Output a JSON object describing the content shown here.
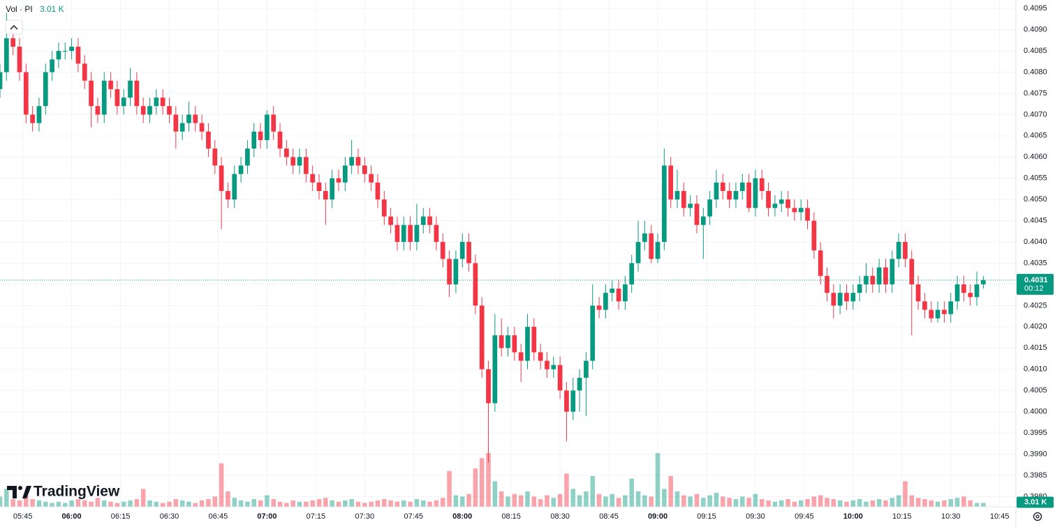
{
  "chart_data": {
    "type": "candlestick",
    "volume_legend": "Vol · PI",
    "volume_label": "3.01 K",
    "countdown": "00:12",
    "last_price": 0.4031,
    "up_color": "#089981",
    "down_color": "#f23645",
    "grid": true,
    "xlim": [
      "05:38",
      "10:50"
    ],
    "xticks": [
      "05:45",
      "06:00",
      "06:15",
      "06:30",
      "06:45",
      "07:00",
      "07:15",
      "07:30",
      "07:45",
      "08:00",
      "08:15",
      "08:30",
      "08:45",
      "09:00",
      "09:15",
      "09:30",
      "09:45",
      "10:00",
      "10:15",
      "10:30",
      "10:45"
    ],
    "ylim": [
      0.39776,
      0.4097
    ],
    "yticks": [
      {
        "value": 0.398,
        "label": "0.3980"
      },
      0.3985,
      {
        "value": 0.399,
        "label": "0.3990"
      },
      0.3995,
      {
        "value": 0.4,
        "label": "0.4000"
      },
      0.4005,
      {
        "value": 0.401,
        "label": "0.4010"
      },
      0.4015,
      {
        "value": 0.402,
        "label": "0.4020"
      },
      0.4025,
      {
        "value": 0.403,
        "label": "0.4030"
      },
      0.4035,
      {
        "value": 0.404,
        "label": "0.4040"
      },
      0.4045,
      {
        "value": 0.405,
        "label": "0.4050"
      },
      0.4055,
      {
        "value": 0.406,
        "label": "0.4060"
      },
      0.4065,
      {
        "value": 0.407,
        "label": "0.4070"
      },
      0.4075,
      {
        "value": 0.408,
        "label": "0.4080"
      },
      0.4085,
      {
        "value": 0.409,
        "label": "0.4090"
      },
      0.4095
    ],
    "volume_ylim": [
      0,
      60
    ],
    "x": [
      "05:38",
      "05:40",
      "05:42",
      "05:44",
      "05:46",
      "05:48",
      "05:50",
      "05:52",
      "05:54",
      "05:56",
      "05:58",
      "06:00",
      "06:02",
      "06:04",
      "06:06",
      "06:08",
      "06:10",
      "06:12",
      "06:14",
      "06:16",
      "06:18",
      "06:20",
      "06:22",
      "06:24",
      "06:26",
      "06:28",
      "06:30",
      "06:32",
      "06:34",
      "06:36",
      "06:38",
      "06:40",
      "06:42",
      "06:44",
      "06:46",
      "06:48",
      "06:50",
      "06:52",
      "06:54",
      "06:56",
      "06:58",
      "07:00",
      "07:02",
      "07:04",
      "07:06",
      "07:08",
      "07:10",
      "07:12",
      "07:14",
      "07:16",
      "07:18",
      "07:20",
      "07:22",
      "07:24",
      "07:26",
      "07:28",
      "07:30",
      "07:32",
      "07:34",
      "07:36",
      "07:38",
      "07:40",
      "07:42",
      "07:44",
      "07:46",
      "07:48",
      "07:50",
      "07:52",
      "07:54",
      "07:56",
      "07:58",
      "08:00",
      "08:02",
      "08:04",
      "08:06",
      "08:08",
      "08:10",
      "08:12",
      "08:14",
      "08:16",
      "08:18",
      "08:20",
      "08:22",
      "08:24",
      "08:26",
      "08:28",
      "08:30",
      "08:32",
      "08:34",
      "08:36",
      "08:38",
      "08:40",
      "08:42",
      "08:44",
      "08:46",
      "08:48",
      "08:50",
      "08:52",
      "08:54",
      "08:56",
      "08:58",
      "09:00",
      "09:02",
      "09:04",
      "09:06",
      "09:08",
      "09:10",
      "09:12",
      "09:14",
      "09:16",
      "09:18",
      "09:20",
      "09:22",
      "09:24",
      "09:26",
      "09:28",
      "09:30",
      "09:32",
      "09:34",
      "09:36",
      "09:38",
      "09:40",
      "09:42",
      "09:44",
      "09:46",
      "09:48",
      "09:50",
      "09:52",
      "09:54",
      "09:56",
      "09:58",
      "10:00",
      "10:02",
      "10:04",
      "10:06",
      "10:08",
      "10:10",
      "10:12",
      "10:14",
      "10:16",
      "10:18",
      "10:20",
      "10:22",
      "10:24",
      "10:26",
      "10:28",
      "10:30",
      "10:32",
      "10:34",
      "10:36",
      "10:38",
      "10:40"
    ],
    "ohlc": [
      [
        0.4076,
        0.4082,
        0.4074,
        0.408
      ],
      [
        0.408,
        0.4094,
        0.4078,
        0.4088
      ],
      [
        0.4088,
        0.409,
        0.4084,
        0.4086
      ],
      [
        0.4086,
        0.4088,
        0.4078,
        0.408
      ],
      [
        0.408,
        0.4082,
        0.4068,
        0.407
      ],
      [
        0.407,
        0.4072,
        0.4066,
        0.4068
      ],
      [
        0.4068,
        0.4074,
        0.4066,
        0.4072
      ],
      [
        0.4072,
        0.4082,
        0.407,
        0.408
      ],
      [
        0.408,
        0.4085,
        0.4078,
        0.4083
      ],
      [
        0.4083,
        0.4087,
        0.4081,
        0.4085
      ],
      [
        0.4085,
        0.4087,
        0.4083,
        0.4085
      ],
      [
        0.4085,
        0.4088,
        0.4083,
        0.4086
      ],
      [
        0.4086,
        0.4088,
        0.408,
        0.4082
      ],
      [
        0.4082,
        0.4084,
        0.4076,
        0.4078
      ],
      [
        0.4078,
        0.408,
        0.4067,
        0.4072
      ],
      [
        0.4072,
        0.4074,
        0.4068,
        0.407
      ],
      [
        0.407,
        0.408,
        0.4068,
        0.4078
      ],
      [
        0.4078,
        0.408,
        0.4074,
        0.4076
      ],
      [
        0.4076,
        0.4078,
        0.407,
        0.4072
      ],
      [
        0.4072,
        0.4076,
        0.407,
        0.4074
      ],
      [
        0.4074,
        0.4081,
        0.4072,
        0.4078
      ],
      [
        0.4078,
        0.408,
        0.407,
        0.4072
      ],
      [
        0.4072,
        0.4074,
        0.4068,
        0.407
      ],
      [
        0.407,
        0.4074,
        0.4068,
        0.4072
      ],
      [
        0.4072,
        0.4076,
        0.407,
        0.4074
      ],
      [
        0.4074,
        0.4076,
        0.407,
        0.4072
      ],
      [
        0.4072,
        0.4074,
        0.4068,
        0.407
      ],
      [
        0.407,
        0.4072,
        0.4062,
        0.4066
      ],
      [
        0.4066,
        0.407,
        0.4064,
        0.4068
      ],
      [
        0.4068,
        0.4073,
        0.4066,
        0.407
      ],
      [
        0.407,
        0.4072,
        0.4066,
        0.4068
      ],
      [
        0.4068,
        0.407,
        0.4064,
        0.4066
      ],
      [
        0.4066,
        0.4068,
        0.406,
        0.4062
      ],
      [
        0.4062,
        0.4064,
        0.4056,
        0.4058
      ],
      [
        0.4058,
        0.406,
        0.4043,
        0.4052
      ],
      [
        0.4052,
        0.4054,
        0.4048,
        0.405
      ],
      [
        0.405,
        0.4058,
        0.4048,
        0.4056
      ],
      [
        0.4056,
        0.406,
        0.4054,
        0.4058
      ],
      [
        0.4058,
        0.4064,
        0.4056,
        0.4062
      ],
      [
        0.4062,
        0.4068,
        0.406,
        0.4066
      ],
      [
        0.4066,
        0.4068,
        0.4062,
        0.4064
      ],
      [
        0.4064,
        0.4071,
        0.4062,
        0.407
      ],
      [
        0.407,
        0.4072,
        0.4064,
        0.4066
      ],
      [
        0.4066,
        0.4068,
        0.406,
        0.4062
      ],
      [
        0.4062,
        0.4064,
        0.4058,
        0.406
      ],
      [
        0.406,
        0.4062,
        0.4056,
        0.4058
      ],
      [
        0.4058,
        0.4062,
        0.4056,
        0.406
      ],
      [
        0.406,
        0.4062,
        0.4054,
        0.4056
      ],
      [
        0.4056,
        0.4058,
        0.4052,
        0.4054
      ],
      [
        0.4054,
        0.4056,
        0.405,
        0.4052
      ],
      [
        0.4052,
        0.4054,
        0.4044,
        0.405
      ],
      [
        0.405,
        0.4057,
        0.4048,
        0.4055
      ],
      [
        0.4055,
        0.4057,
        0.4052,
        0.4054
      ],
      [
        0.4054,
        0.406,
        0.4052,
        0.4058
      ],
      [
        0.4058,
        0.4064,
        0.4056,
        0.406
      ],
      [
        0.406,
        0.4062,
        0.4056,
        0.4058
      ],
      [
        0.4058,
        0.406,
        0.4054,
        0.4056
      ],
      [
        0.4056,
        0.4058,
        0.4052,
        0.4054
      ],
      [
        0.4054,
        0.4056,
        0.4048,
        0.405
      ],
      [
        0.405,
        0.4052,
        0.4044,
        0.4046
      ],
      [
        0.4046,
        0.4048,
        0.4042,
        0.4044
      ],
      [
        0.4044,
        0.4046,
        0.4038,
        0.404
      ],
      [
        0.404,
        0.4046,
        0.4038,
        0.4044
      ],
      [
        0.4044,
        0.4046,
        0.4038,
        0.404
      ],
      [
        0.404,
        0.4049,
        0.4038,
        0.4044
      ],
      [
        0.4044,
        0.4048,
        0.4042,
        0.4046
      ],
      [
        0.4046,
        0.4048,
        0.4042,
        0.4044
      ],
      [
        0.4044,
        0.4046,
        0.4038,
        0.404
      ],
      [
        0.404,
        0.4042,
        0.4034,
        0.4036
      ],
      [
        0.4036,
        0.4038,
        0.4027,
        0.403
      ],
      [
        0.403,
        0.4038,
        0.4028,
        0.4036
      ],
      [
        0.4036,
        0.4042,
        0.4034,
        0.404
      ],
      [
        0.404,
        0.4042,
        0.4033,
        0.4035
      ],
      [
        0.4035,
        0.4037,
        0.4023,
        0.4025
      ],
      [
        0.4025,
        0.4027,
        0.4008,
        0.401
      ],
      [
        0.401,
        0.4012,
        0.3988,
        0.4002
      ],
      [
        0.4002,
        0.4023,
        0.4,
        0.4018
      ],
      [
        0.4018,
        0.4022,
        0.4013,
        0.4015
      ],
      [
        0.4015,
        0.402,
        0.4013,
        0.4018
      ],
      [
        0.4018,
        0.402,
        0.4012,
        0.4014
      ],
      [
        0.4014,
        0.4016,
        0.4007,
        0.4012
      ],
      [
        0.4012,
        0.4023,
        0.401,
        0.402
      ],
      [
        0.402,
        0.4022,
        0.4012,
        0.4014
      ],
      [
        0.4014,
        0.4016,
        0.401,
        0.4012
      ],
      [
        0.4012,
        0.4014,
        0.4008,
        0.401
      ],
      [
        0.401,
        0.4013,
        0.4008,
        0.4011
      ],
      [
        0.4011,
        0.4013,
        0.4003,
        0.4005
      ],
      [
        0.4005,
        0.4007,
        0.3993,
        0.4
      ],
      [
        0.4,
        0.4008,
        0.3998,
        0.4005
      ],
      [
        0.4005,
        0.401,
        0.4,
        0.4008
      ],
      [
        0.4008,
        0.4014,
        0.3999,
        0.4012
      ],
      [
        0.4012,
        0.403,
        0.401,
        0.4025
      ],
      [
        0.4025,
        0.4027,
        0.4022,
        0.4024
      ],
      [
        0.4024,
        0.403,
        0.4022,
        0.4028
      ],
      [
        0.4028,
        0.4031,
        0.4026,
        0.4029
      ],
      [
        0.4029,
        0.4031,
        0.4024,
        0.4026
      ],
      [
        0.4026,
        0.4032,
        0.4024,
        0.403
      ],
      [
        0.403,
        0.4037,
        0.4028,
        0.4035
      ],
      [
        0.4035,
        0.4045,
        0.4033,
        0.404
      ],
      [
        0.404,
        0.4045,
        0.4038,
        0.4042
      ],
      [
        0.4042,
        0.4044,
        0.4035,
        0.4036
      ],
      [
        0.4036,
        0.4042,
        0.4035,
        0.404
      ],
      [
        0.404,
        0.4062,
        0.4038,
        0.4058
      ],
      [
        0.4058,
        0.406,
        0.4048,
        0.405
      ],
      [
        0.405,
        0.4057,
        0.4048,
        0.4052
      ],
      [
        0.4052,
        0.4054,
        0.4046,
        0.4048
      ],
      [
        0.4048,
        0.4051,
        0.4046,
        0.4049
      ],
      [
        0.4049,
        0.4051,
        0.4042,
        0.4044
      ],
      [
        0.4044,
        0.4048,
        0.4036,
        0.4046
      ],
      [
        0.4046,
        0.4052,
        0.4044,
        0.405
      ],
      [
        0.405,
        0.4057,
        0.4048,
        0.4054
      ],
      [
        0.4054,
        0.4056,
        0.405,
        0.4052
      ],
      [
        0.4052,
        0.4054,
        0.4048,
        0.405
      ],
      [
        0.405,
        0.4054,
        0.4048,
        0.4052
      ],
      [
        0.4052,
        0.4056,
        0.405,
        0.4054
      ],
      [
        0.4054,
        0.4056,
        0.4047,
        0.4048
      ],
      [
        0.4048,
        0.4057,
        0.4046,
        0.4055
      ],
      [
        0.4055,
        0.4057,
        0.405,
        0.4052
      ],
      [
        0.4052,
        0.4054,
        0.4046,
        0.4048
      ],
      [
        0.4048,
        0.4051,
        0.4046,
        0.4049
      ],
      [
        0.4049,
        0.4052,
        0.4047,
        0.405
      ],
      [
        0.405,
        0.4052,
        0.4046,
        0.4048
      ],
      [
        0.4048,
        0.405,
        0.4045,
        0.4047
      ],
      [
        0.4047,
        0.405,
        0.4045,
        0.4048
      ],
      [
        0.4048,
        0.405,
        0.4043,
        0.4045
      ],
      [
        0.4045,
        0.4047,
        0.4036,
        0.4038
      ],
      [
        0.4038,
        0.404,
        0.403,
        0.4032
      ],
      [
        0.4032,
        0.4034,
        0.4026,
        0.4028
      ],
      [
        0.4028,
        0.403,
        0.4022,
        0.4025
      ],
      [
        0.4025,
        0.403,
        0.4023,
        0.4028
      ],
      [
        0.4028,
        0.403,
        0.4024,
        0.4026
      ],
      [
        0.4026,
        0.403,
        0.4024,
        0.4028
      ],
      [
        0.4028,
        0.4032,
        0.4026,
        0.403
      ],
      [
        0.403,
        0.4035,
        0.4028,
        0.4032
      ],
      [
        0.4032,
        0.4034,
        0.4028,
        0.403
      ],
      [
        0.403,
        0.4036,
        0.4028,
        0.4034
      ],
      [
        0.4034,
        0.4036,
        0.4028,
        0.403
      ],
      [
        0.403,
        0.4038,
        0.4028,
        0.4036
      ],
      [
        0.4036,
        0.4042,
        0.4034,
        0.404
      ],
      [
        0.404,
        0.4042,
        0.4034,
        0.4036
      ],
      [
        0.4036,
        0.4038,
        0.4018,
        0.403
      ],
      [
        0.403,
        0.4032,
        0.4024,
        0.4026
      ],
      [
        0.4026,
        0.4028,
        0.4022,
        0.4024
      ],
      [
        0.4024,
        0.4026,
        0.4021,
        0.4022
      ],
      [
        0.4022,
        0.4026,
        0.4021,
        0.4024
      ],
      [
        0.4024,
        0.4026,
        0.4021,
        0.4023
      ],
      [
        0.4023,
        0.4028,
        0.4021,
        0.4026
      ],
      [
        0.4026,
        0.4032,
        0.4024,
        0.403
      ],
      [
        0.403,
        0.4032,
        0.4026,
        0.4028
      ],
      [
        0.4028,
        0.403,
        0.4025,
        0.4027
      ],
      [
        0.4027,
        0.4033,
        0.4025,
        0.403
      ],
      [
        0.403,
        0.4032,
        0.4029,
        0.4031
      ]
    ],
    "volume": [
      8,
      14,
      6,
      5,
      9,
      6,
      5,
      4,
      3,
      4,
      3,
      5,
      6,
      5,
      4,
      7,
      5,
      4,
      3,
      4,
      5,
      6,
      14,
      5,
      4,
      3,
      4,
      6,
      5,
      4,
      3,
      5,
      6,
      8,
      34,
      12,
      7,
      5,
      4,
      6,
      5,
      9,
      6,
      4,
      3,
      5,
      4,
      4,
      5,
      6,
      7,
      5,
      4,
      5,
      6,
      4,
      3,
      4,
      5,
      6,
      5,
      4,
      5,
      4,
      6,
      5,
      4,
      5,
      7,
      28,
      9,
      8,
      10,
      30,
      38,
      42,
      20,
      12,
      8,
      10,
      9,
      12,
      8,
      6,
      9,
      7,
      10,
      26,
      14,
      9,
      12,
      24,
      10,
      8,
      10,
      7,
      9,
      22,
      12,
      9,
      8,
      42,
      14,
      24,
      12,
      9,
      8,
      10,
      7,
      9,
      11,
      8,
      7,
      6,
      8,
      7,
      10,
      6,
      5,
      4,
      5,
      6,
      4,
      5,
      6,
      8,
      9,
      7,
      6,
      5,
      4,
      5,
      6,
      4,
      5,
      6,
      5,
      7,
      9,
      20,
      9,
      7,
      6,
      5,
      4,
      5,
      6,
      7,
      8,
      5,
      3,
      3.01
    ]
  },
  "branding": "TradingView"
}
